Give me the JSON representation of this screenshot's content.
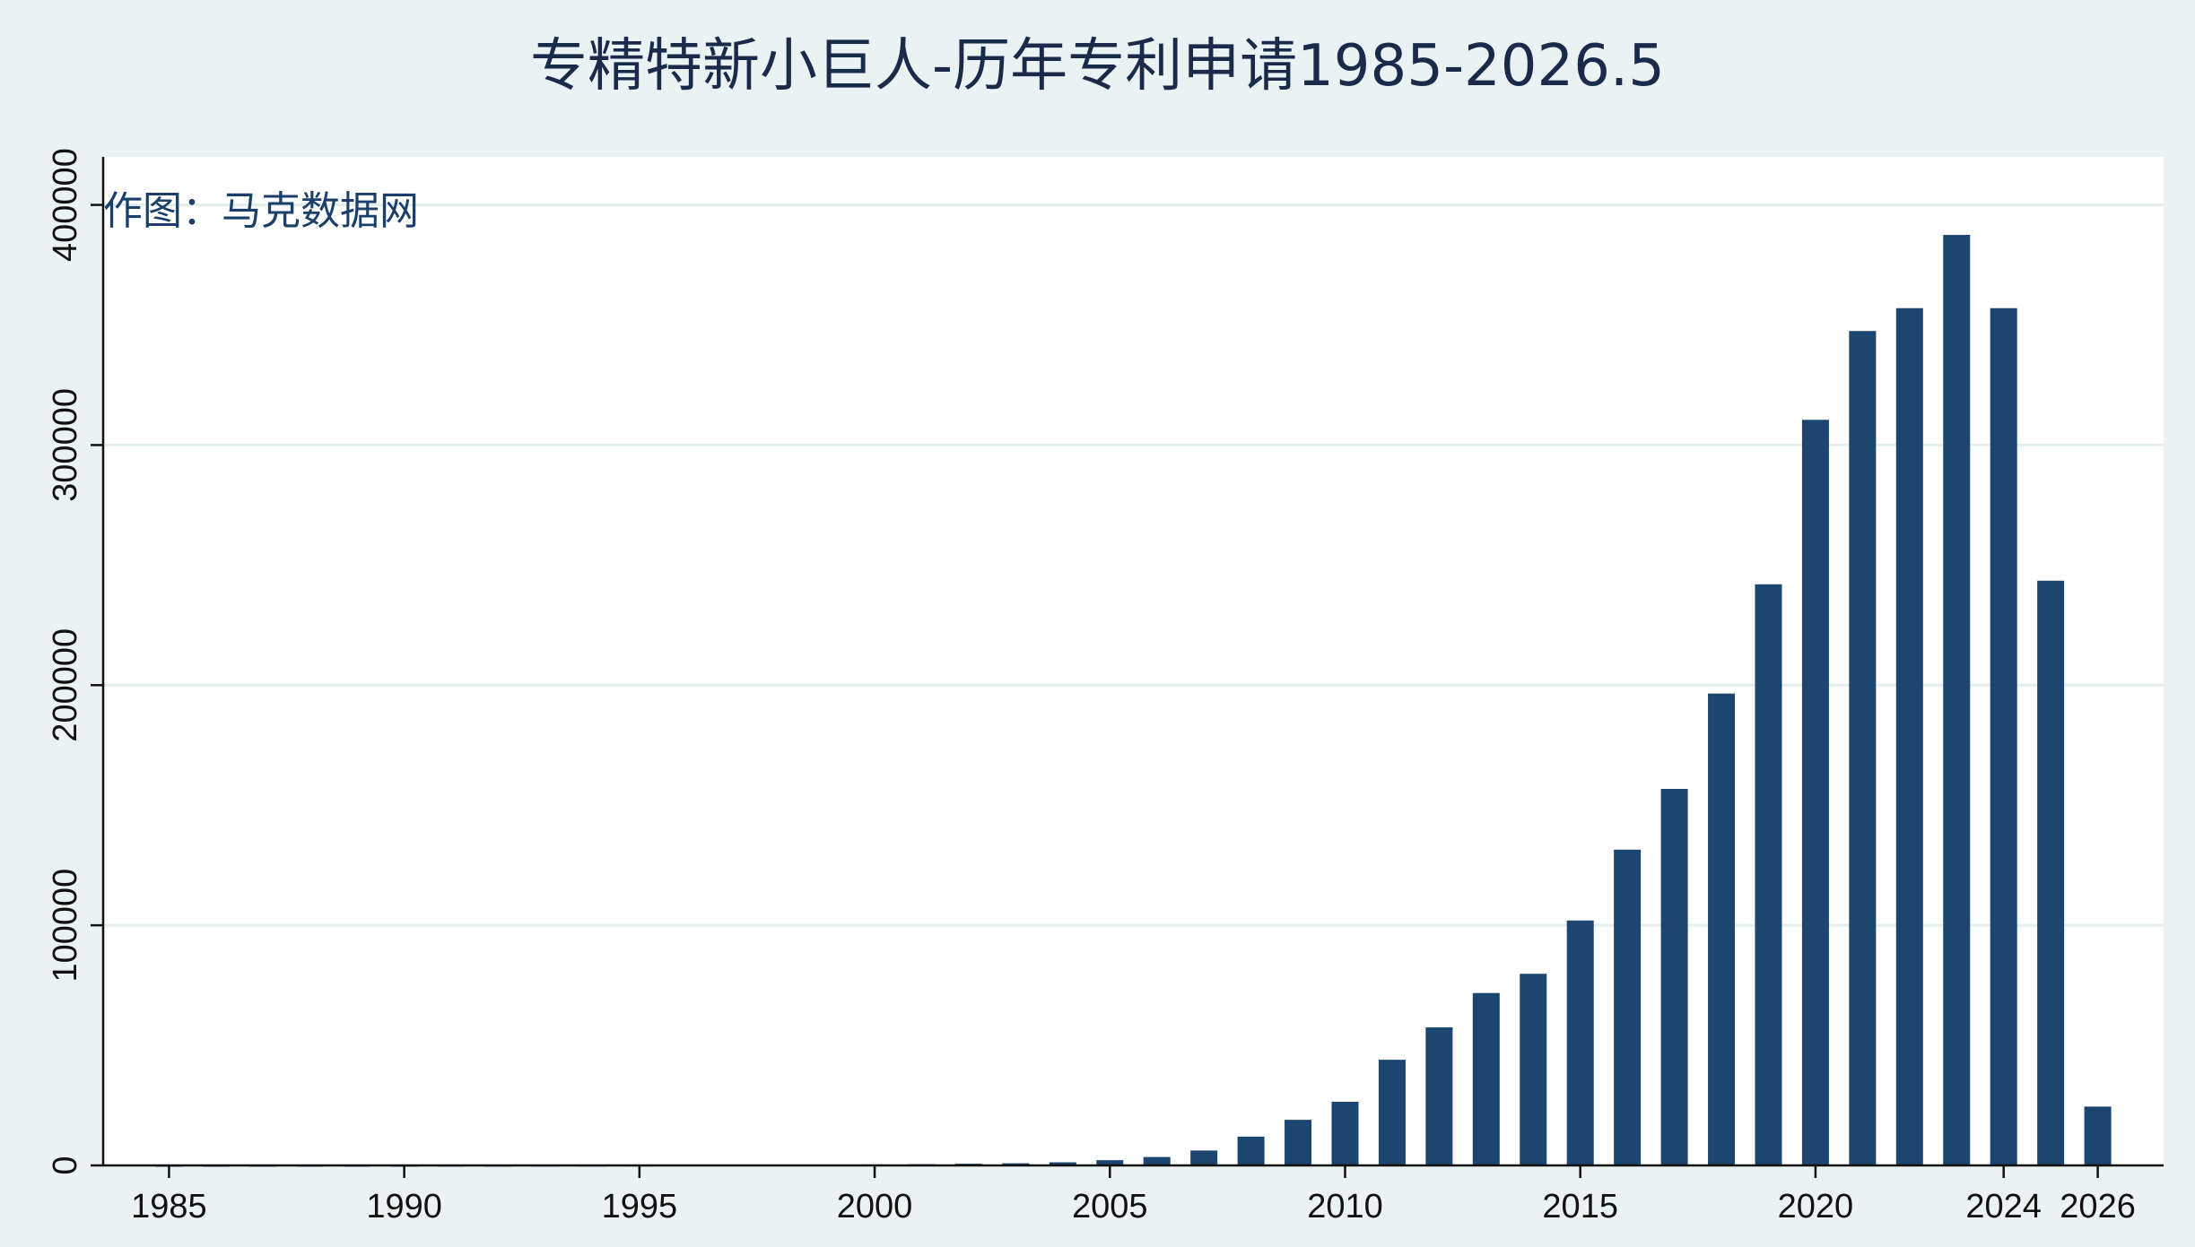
{
  "chart_data": {
    "type": "bar",
    "title": "专精特新小巨人-历年专利申请1985-2026.5",
    "annotation": "作图：马克数据网",
    "xlabel": "",
    "ylabel": "",
    "x": [
      1985,
      1986,
      1987,
      1988,
      1989,
      1990,
      1991,
      1992,
      1993,
      1994,
      1995,
      1996,
      1997,
      1998,
      1999,
      2000,
      2001,
      2002,
      2003,
      2004,
      2005,
      2006,
      2007,
      2008,
      2009,
      2010,
      2011,
      2012,
      2013,
      2014,
      2015,
      2016,
      2017,
      2018,
      2019,
      2020,
      2021,
      2022,
      2023,
      2024,
      2025,
      2026
    ],
    "values": [
      20,
      30,
      40,
      50,
      60,
      70,
      80,
      90,
      100,
      120,
      150,
      180,
      220,
      260,
      300,
      400,
      500,
      700,
      900,
      1300,
      2200,
      3500,
      6200,
      12000,
      19000,
      26500,
      44000,
      57500,
      71800,
      79800,
      102000,
      131500,
      156800,
      196500,
      242000,
      310500,
      347500,
      357000,
      387500,
      357000,
      243500,
      24500
    ],
    "x_ticks": [
      "1985",
      "1990",
      "1995",
      "2000",
      "2005",
      "2010",
      "2015",
      "2020",
      "2024",
      "2026"
    ],
    "y_ticks": [
      "0",
      "100000",
      "200000",
      "300000",
      "400000"
    ],
    "ylim": [
      0,
      420000
    ],
    "grid": true,
    "legend": "none",
    "bar_color": "#1c4670",
    "plot_background": "#ffffff",
    "page_background": "#eaf2f3",
    "grid_color": "#e3eeef"
  }
}
